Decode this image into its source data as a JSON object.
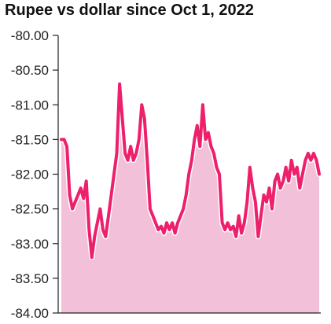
{
  "title": "Rupee vs dollar since Oct 1, 2022",
  "colors": {
    "line": "#ee1f6b",
    "area": "#f2c0d8",
    "axis": "#222222",
    "background": "#ffffff"
  },
  "chart_data": {
    "type": "area",
    "title": "Rupee vs dollar since Oct 1, 2022",
    "xlabel": "",
    "ylabel": "",
    "ylim": [
      -84.0,
      -80.0
    ],
    "yticks": [
      -80.0,
      -80.5,
      -81.0,
      -81.5,
      -82.0,
      -82.5,
      -83.0,
      -83.5,
      -84.0
    ],
    "ytick_labels": [
      "-80.00",
      "-80.50",
      "-81.00",
      "-81.50",
      "-82.00",
      "-82.50",
      "-83.00",
      "-83.50",
      "-84.00"
    ],
    "x_start": "2022-10-01",
    "x_ticks_shown": false,
    "grid": false,
    "x_step": "approx. 2 trading days",
    "values": [
      -81.5,
      -81.5,
      -81.6,
      -82.3,
      -82.5,
      -82.4,
      -82.3,
      -82.2,
      -82.35,
      -82.1,
      -82.8,
      -83.2,
      -82.9,
      -82.7,
      -82.5,
      -82.8,
      -82.9,
      -82.6,
      -82.3,
      -82.0,
      -81.7,
      -80.7,
      -81.2,
      -81.7,
      -81.8,
      -81.6,
      -81.8,
      -81.7,
      -81.5,
      -81.0,
      -81.2,
      -81.8,
      -82.5,
      -82.6,
      -82.7,
      -82.8,
      -82.75,
      -82.85,
      -82.7,
      -82.8,
      -82.7,
      -82.85,
      -82.7,
      -82.6,
      -82.5,
      -82.3,
      -82.0,
      -81.8,
      -81.5,
      -81.3,
      -81.6,
      -81.0,
      -81.5,
      -81.4,
      -81.6,
      -81.7,
      -81.9,
      -82.0,
      -82.7,
      -82.8,
      -82.7,
      -82.8,
      -82.75,
      -82.9,
      -82.6,
      -82.85,
      -82.7,
      -82.4,
      -81.9,
      -82.2,
      -82.4,
      -82.9,
      -82.6,
      -82.3,
      -82.4,
      -82.2,
      -82.5,
      -82.1,
      -82.0,
      -82.2,
      -82.1,
      -81.9,
      -82.1,
      -81.8,
      -82.0,
      -81.9,
      -82.2,
      -82.0,
      -81.8,
      -81.7,
      -81.8,
      -81.7,
      -81.8,
      -82.0
    ]
  }
}
